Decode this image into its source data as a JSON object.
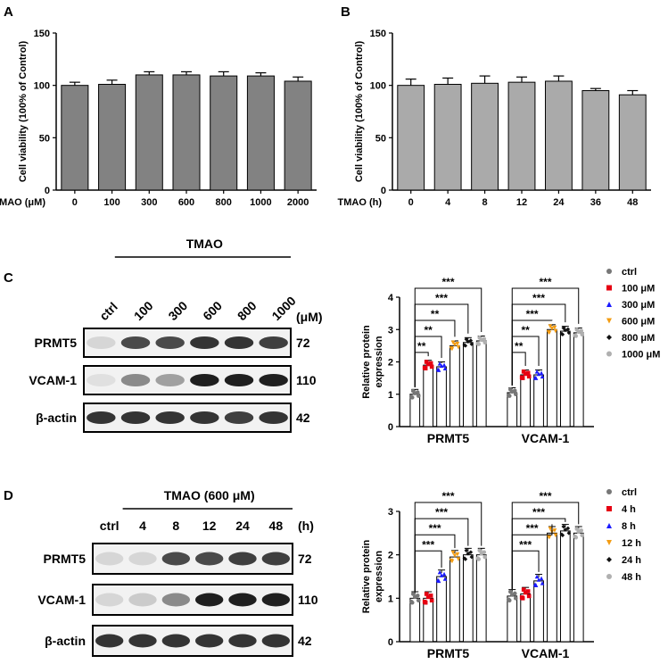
{
  "panels": {
    "A": "A",
    "B": "B",
    "C": "C",
    "D": "D"
  },
  "chart_data": [
    {
      "id": "A",
      "type": "bar",
      "ylabel": "Cell viability (100% of Control)",
      "xlabel": "TMAO (μM)",
      "categories": [
        "0",
        "100",
        "300",
        "600",
        "800",
        "1000",
        "2000"
      ],
      "values": [
        100,
        101,
        110,
        110,
        109,
        109,
        104
      ],
      "errors": [
        3,
        4,
        3,
        3,
        4,
        3,
        4
      ],
      "ylim": [
        0,
        150
      ],
      "yticks": [
        "0",
        "50",
        "100",
        "150"
      ],
      "bar_color": "#828282"
    },
    {
      "id": "B",
      "type": "bar",
      "ylabel": "Cell viability (100% of Control)",
      "xlabel": "TMAO (h)",
      "categories": [
        "0",
        "4",
        "8",
        "12",
        "24",
        "36",
        "48"
      ],
      "values": [
        100,
        101,
        102,
        103,
        104,
        95,
        91
      ],
      "errors": [
        6,
        6,
        7,
        5,
        5,
        2,
        4
      ],
      "ylim": [
        0,
        150
      ],
      "yticks": [
        "0",
        "50",
        "100",
        "150"
      ],
      "bar_color": "#aaaaaa"
    },
    {
      "id": "C",
      "type": "bar",
      "ylabel": "Relative protein expression",
      "groups": [
        "PRMT5",
        "VCAM-1"
      ],
      "legend": [
        "ctrl",
        "100 μM",
        "300 μM",
        "600 μM",
        "800 μM",
        "1000 μM"
      ],
      "values": [
        [
          1.0,
          1.9,
          1.85,
          2.5,
          2.6,
          2.65
        ],
        [
          1.05,
          1.6,
          1.6,
          3.0,
          2.95,
          2.9
        ]
      ],
      "ylim": [
        0,
        4
      ],
      "yticks": [
        "0",
        "1",
        "2",
        "3",
        "4"
      ],
      "significance": [
        {
          "group": 0,
          "to": 1,
          "label": "**"
        },
        {
          "group": 0,
          "to": 2,
          "label": "**"
        },
        {
          "group": 0,
          "to": 3,
          "label": "**"
        },
        {
          "group": 0,
          "to": 4,
          "label": "***"
        },
        {
          "group": 0,
          "to": 5,
          "label": "***"
        },
        {
          "group": 1,
          "to": 1,
          "label": "**"
        },
        {
          "group": 1,
          "to": 2,
          "label": "**"
        },
        {
          "group": 1,
          "to": 3,
          "label": "***"
        },
        {
          "group": 1,
          "to": 4,
          "label": "***"
        },
        {
          "group": 1,
          "to": 5,
          "label": "***"
        }
      ]
    },
    {
      "id": "D",
      "type": "bar",
      "ylabel": "Relative protein expression",
      "groups": [
        "PRMT5",
        "VCAM-1"
      ],
      "legend": [
        "ctrl",
        "4 h",
        "8 h",
        "12 h",
        "24 h",
        "48 h"
      ],
      "values": [
        [
          1.0,
          1.0,
          1.5,
          1.95,
          2.0,
          2.0
        ],
        [
          1.05,
          1.1,
          1.4,
          2.5,
          2.55,
          2.5
        ]
      ],
      "ylim": [
        0,
        3
      ],
      "yticks": [
        "0",
        "1",
        "2",
        "3"
      ],
      "significance": [
        {
          "group": 0,
          "to": 2,
          "label": "***"
        },
        {
          "group": 0,
          "to": 3,
          "label": "***"
        },
        {
          "group": 0,
          "to": 4,
          "label": "***"
        },
        {
          "group": 0,
          "to": 5,
          "label": "***"
        },
        {
          "group": 1,
          "to": 2,
          "label": "***"
        },
        {
          "group": 1,
          "to": 3,
          "label": "***"
        },
        {
          "group": 1,
          "to": 4,
          "label": "***"
        },
        {
          "group": 1,
          "to": 5,
          "label": "***"
        }
      ]
    }
  ],
  "blots": {
    "C": {
      "treatment": "TMAO",
      "unit": "(μM)",
      "lanes": [
        "ctrl",
        "100",
        "300",
        "600",
        "800",
        "1000"
      ],
      "rows": [
        {
          "protein": "PRMT5",
          "kda": "72",
          "intensity": [
            0.1,
            0.75,
            0.75,
            0.85,
            0.85,
            0.8
          ]
        },
        {
          "protein": "VCAM-1",
          "kda": "110",
          "intensity": [
            0.05,
            0.45,
            0.35,
            0.95,
            0.95,
            0.95
          ]
        },
        {
          "protein": "β-actin",
          "kda": "42",
          "intensity": [
            0.85,
            0.85,
            0.85,
            0.85,
            0.8,
            0.85
          ]
        }
      ]
    },
    "D": {
      "treatment": "TMAO  (600 μM)",
      "unit": "(h)",
      "lanes": [
        "ctrl",
        "4",
        "8",
        "12",
        "24",
        "48"
      ],
      "rows": [
        {
          "protein": "PRMT5",
          "kda": "72",
          "intensity": [
            0.1,
            0.1,
            0.75,
            0.75,
            0.8,
            0.8
          ]
        },
        {
          "protein": "VCAM-1",
          "kda": "110",
          "intensity": [
            0.1,
            0.15,
            0.45,
            0.95,
            0.95,
            0.95
          ]
        },
        {
          "protein": "β-actin",
          "kda": "42",
          "intensity": [
            0.85,
            0.85,
            0.85,
            0.85,
            0.85,
            0.85
          ]
        }
      ]
    }
  },
  "colors": {
    "series": [
      "#777777",
      "#e60012",
      "#1a1aff",
      "#f39c12",
      "#111111",
      "#b0b0b0"
    ]
  }
}
